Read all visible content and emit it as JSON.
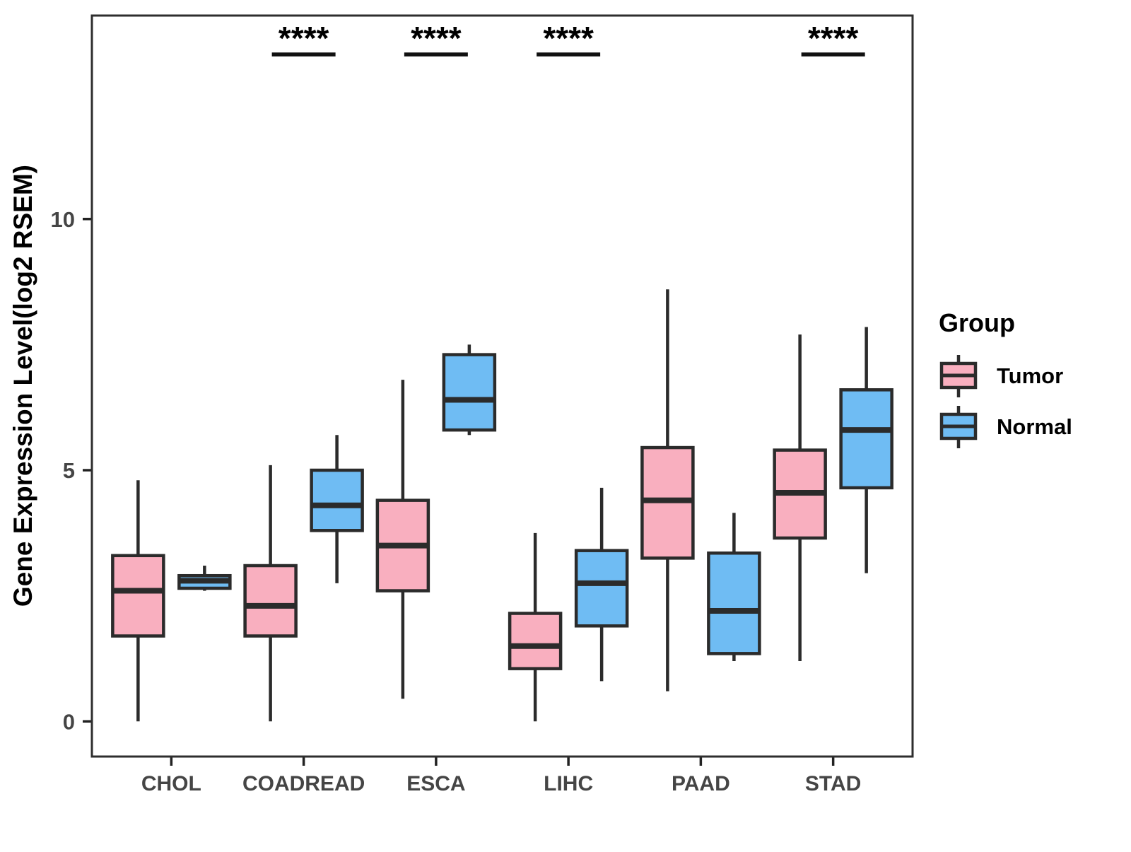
{
  "figure": {
    "background": "#ffffff",
    "panel_border_color": "#2e2e2e",
    "legend": {
      "title": "Group",
      "position": "right",
      "items": [
        {
          "label": "Tumor",
          "color": "#f9afbf"
        },
        {
          "label": "Normal",
          "color": "#6fbcf3"
        }
      ]
    }
  },
  "chart_data": {
    "type": "boxplot",
    "title": "",
    "xlabel": "",
    "ylabel": "Gene Expression Level(log2 RSEM)",
    "categories": [
      "CHOL",
      "COADREAD",
      "ESCA",
      "LIHC",
      "PAAD",
      "STAD"
    ],
    "yticks": [
      0,
      5,
      10
    ],
    "ylim": [
      -0.7,
      14.05
    ],
    "grid": false,
    "legend_position": "right",
    "box_outline_color": "#2b2b2b",
    "series": [
      {
        "name": "Tumor",
        "color": "#f9afbf",
        "boxes": [
          {
            "min": 0.0,
            "q1": 1.7,
            "median": 2.6,
            "q3": 3.3,
            "max": 4.8
          },
          {
            "min": 0.0,
            "q1": 1.7,
            "median": 2.3,
            "q3": 3.1,
            "max": 5.1
          },
          {
            "min": 0.45,
            "q1": 2.6,
            "median": 3.5,
            "q3": 4.4,
            "max": 6.8
          },
          {
            "min": 0.0,
            "q1": 1.05,
            "median": 1.5,
            "q3": 2.15,
            "max": 3.75
          },
          {
            "min": 0.6,
            "q1": 3.25,
            "median": 4.4,
            "q3": 5.45,
            "max": 8.6
          },
          {
            "min": 1.2,
            "q1": 3.65,
            "median": 4.55,
            "q3": 5.4,
            "max": 7.7
          }
        ]
      },
      {
        "name": "Normal",
        "color": "#6fbcf3",
        "boxes": [
          {
            "min": 2.6,
            "q1": 2.65,
            "median": 2.8,
            "q3": 2.9,
            "max": 3.1
          },
          {
            "min": 2.75,
            "q1": 3.8,
            "median": 4.3,
            "q3": 5.0,
            "max": 5.7
          },
          {
            "min": 5.7,
            "q1": 5.8,
            "median": 6.4,
            "q3": 7.3,
            "max": 7.5
          },
          {
            "min": 0.8,
            "q1": 1.9,
            "median": 2.75,
            "q3": 3.4,
            "max": 4.65
          },
          {
            "min": 1.2,
            "q1": 1.35,
            "median": 2.2,
            "q3": 3.35,
            "max": 4.15
          },
          {
            "min": 2.95,
            "q1": 4.65,
            "median": 5.8,
            "q3": 6.6,
            "max": 7.85
          }
        ]
      }
    ],
    "significance": [
      "",
      "****",
      "****",
      "****",
      "",
      "****"
    ]
  }
}
